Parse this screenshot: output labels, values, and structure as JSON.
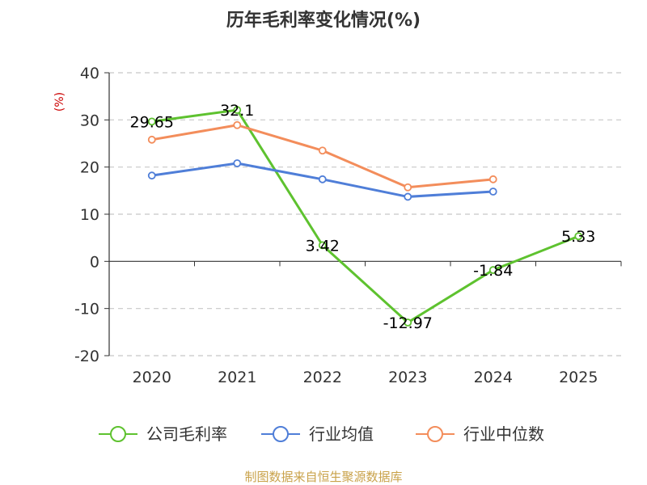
{
  "chart_data": {
    "type": "line",
    "title": "历年毛利率变化情况(%)",
    "xlabel": "",
    "ylabel": "(%)",
    "categories": [
      "2020",
      "2021",
      "2022",
      "2023",
      "2024",
      "2025"
    ],
    "ylim": [
      -20,
      40
    ],
    "yticks": [
      40,
      30,
      20,
      10,
      0,
      -10,
      -20
    ],
    "ytick_labels": [
      "40",
      "30",
      "20",
      "10",
      "0",
      "-10",
      "-20"
    ],
    "grid": true,
    "legend_position": "bottom",
    "series": [
      {
        "name": "公司毛利率",
        "color": "#5ec22f",
        "values": [
          29.65,
          32.1,
          3.42,
          -12.97,
          -1.84,
          5.33
        ],
        "labels": [
          "29.65",
          "32.1",
          "3.42",
          "-12.97",
          "-1.84",
          "5.33"
        ]
      },
      {
        "name": "行业均值",
        "color": "#4f7ed8",
        "values": [
          18.2,
          20.8,
          17.4,
          13.7,
          14.8,
          null
        ]
      },
      {
        "name": "行业中位数",
        "color": "#f38d5b",
        "values": [
          25.8,
          28.9,
          23.5,
          15.7,
          17.4,
          null
        ]
      }
    ]
  },
  "source": "制图数据来自恒生聚源数据库"
}
